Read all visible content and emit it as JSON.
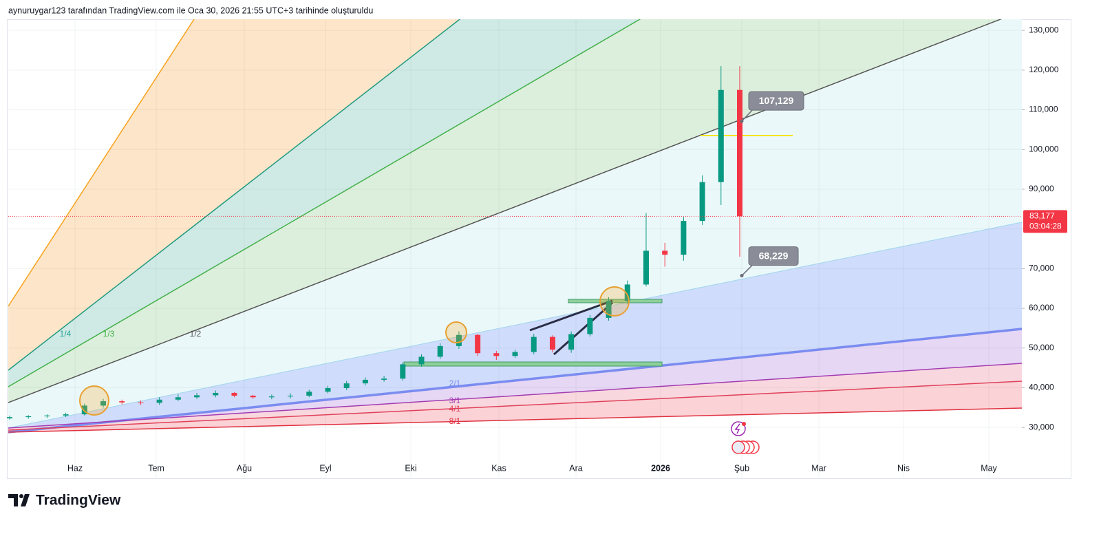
{
  "header": "aynuruygar123 tarafından TradingView.com ile Oca 30, 2026 21:55 UTC+3 tarihinde oluşturuldu",
  "logo": "TradingView",
  "chart_data": {
    "type": "candlestick",
    "up_color": "#089981",
    "down_color": "#f23645",
    "open": [
      32300,
      32600,
      32800,
      33000,
      33300,
      35500,
      36600,
      36300,
      36200,
      37000,
      37600,
      38100,
      38700,
      38000,
      37600,
      37800,
      38000,
      39000,
      39900,
      41100,
      42000,
      42300,
      45900,
      47800,
      50500,
      53300,
      48700,
      48000,
      49000,
      52800,
      49600,
      53500,
      57600,
      61900,
      66000,
      74500,
      73500,
      82000,
      91800,
      115000
    ],
    "high": [
      33000,
      33100,
      33300,
      33700,
      36000,
      37200,
      37000,
      36800,
      37600,
      38300,
      38700,
      39300,
      38900,
      38200,
      38300,
      38600,
      39500,
      40500,
      41700,
      42600,
      43000,
      46400,
      48400,
      51200,
      54200,
      53600,
      49300,
      49600,
      53600,
      53200,
      54200,
      58300,
      62800,
      67000,
      84000,
      76500,
      83000,
      93500,
      121000,
      121000
    ],
    "low": [
      32000,
      32200,
      32400,
      32600,
      33000,
      35000,
      35800,
      35700,
      35700,
      36600,
      37200,
      37600,
      37600,
      37200,
      37100,
      37300,
      37600,
      38600,
      39400,
      40600,
      41500,
      41800,
      45300,
      47200,
      49800,
      48000,
      47000,
      47500,
      48400,
      48900,
      48800,
      52900,
      56900,
      61200,
      65500,
      70500,
      72000,
      81000,
      86000,
      73000
    ],
    "close": [
      32600,
      32800,
      33000,
      33300,
      35500,
      36600,
      36300,
      36200,
      37000,
      37600,
      38100,
      38700,
      38000,
      37600,
      37800,
      38000,
      39000,
      39900,
      41100,
      42000,
      42300,
      45900,
      47800,
      50500,
      53300,
      48700,
      48000,
      49000,
      52800,
      49600,
      53500,
      57600,
      61900,
      66000,
      74500,
      73500,
      82000,
      91800,
      115000,
      83177
    ],
    "xtick_labels": [
      "Haz",
      "Tem",
      "Ağu",
      "Eyl",
      "Eki",
      "Kas",
      "Ara",
      "2026",
      "Şub",
      "Mar",
      "Nis",
      "May"
    ],
    "ylim": [
      17200,
      132800
    ],
    "yticks": [
      {
        "value": 30000,
        "label": "30,000"
      },
      {
        "value": 40000,
        "label": "40,000"
      },
      {
        "value": 50000,
        "label": "50,000"
      },
      {
        "value": 60000,
        "label": "60,000"
      },
      {
        "value": 70000,
        "label": "70,000"
      },
      {
        "value": 80000,
        "label": "80,000"
      },
      {
        "value": 90000,
        "label": "90,000"
      },
      {
        "value": 100000,
        "label": "100,000"
      },
      {
        "value": 110000,
        "label": "110,000"
      },
      {
        "value": 120000,
        "label": "120,000"
      },
      {
        "value": 130000,
        "label": "130,000"
      }
    ],
    "grid": true,
    "annotations": [
      {
        "value": 107129,
        "label": "107,129"
      },
      {
        "value": 68229,
        "label": "68,229"
      }
    ],
    "last_price": {
      "value": 83177,
      "label": "83,177"
    },
    "countdown": "03:04:28",
    "fan_labels": [
      "1/4",
      "1/3",
      "1/2",
      "2/1",
      "3/1",
      "4/1",
      "8/1"
    ]
  }
}
